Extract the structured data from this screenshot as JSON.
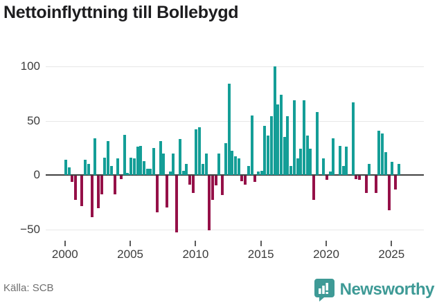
{
  "title": "Nettoinflyttning till Bollebygd",
  "source_label": "Källa: SCB",
  "branding": {
    "name": "Newsworthy",
    "logo_color": "#3e9a96",
    "logo_glyph": "bar-chart-speech-bubble-icon"
  },
  "colors": {
    "positive_bar": "#149e97",
    "negative_bar": "#951048",
    "zero_line": "#3f3f3f",
    "gridline": "#e7e7e7",
    "axis_text": "#3c3c3c",
    "title_text": "#1d1d1f",
    "source_text": "#6f6f6f"
  },
  "chart_data": {
    "type": "bar",
    "title": "Nettoinflyttning till Bollebygd",
    "xlabel": "",
    "ylabel": "",
    "frequency": "quarterly",
    "start_period": "2000 Q1",
    "end_period": "2025 Q3",
    "x_tick_labels": [
      "2000",
      "2005",
      "2010",
      "2015",
      "2020",
      "2025"
    ],
    "x_tick_years": [
      2000,
      2005,
      2010,
      2015,
      2020,
      2025
    ],
    "y_tick_labels": [
      "100",
      "50",
      "0",
      "−50"
    ],
    "y_ticks": [
      100,
      50,
      0,
      -50
    ],
    "ylim": [
      -60,
      110
    ],
    "grid": "horizontal",
    "legend": "none",
    "values": [
      14,
      7,
      -6,
      -22,
      0,
      -28,
      14,
      10,
      -38,
      34,
      -30,
      -17,
      16,
      31,
      8,
      -17,
      15,
      -3,
      37,
      2,
      16,
      15,
      26,
      27,
      13,
      6,
      6,
      25,
      -34,
      31,
      20,
      -29,
      3,
      20,
      -52,
      33,
      4,
      10,
      -8,
      -16,
      42,
      44,
      10,
      20,
      -50,
      -22,
      -9,
      20,
      -18,
      29,
      84,
      22,
      17,
      15,
      -5,
      -8,
      8,
      55,
      -6,
      3,
      4,
      45,
      36,
      54,
      100,
      65,
      74,
      35,
      54,
      8,
      69,
      15,
      24,
      69,
      36,
      24,
      -22,
      58,
      0,
      15,
      -4,
      3,
      34,
      0,
      27,
      8,
      26,
      0,
      67,
      -3,
      -4,
      0,
      -16,
      10,
      0,
      -16,
      41,
      38,
      21,
      -32,
      12,
      -13,
      10
    ]
  }
}
